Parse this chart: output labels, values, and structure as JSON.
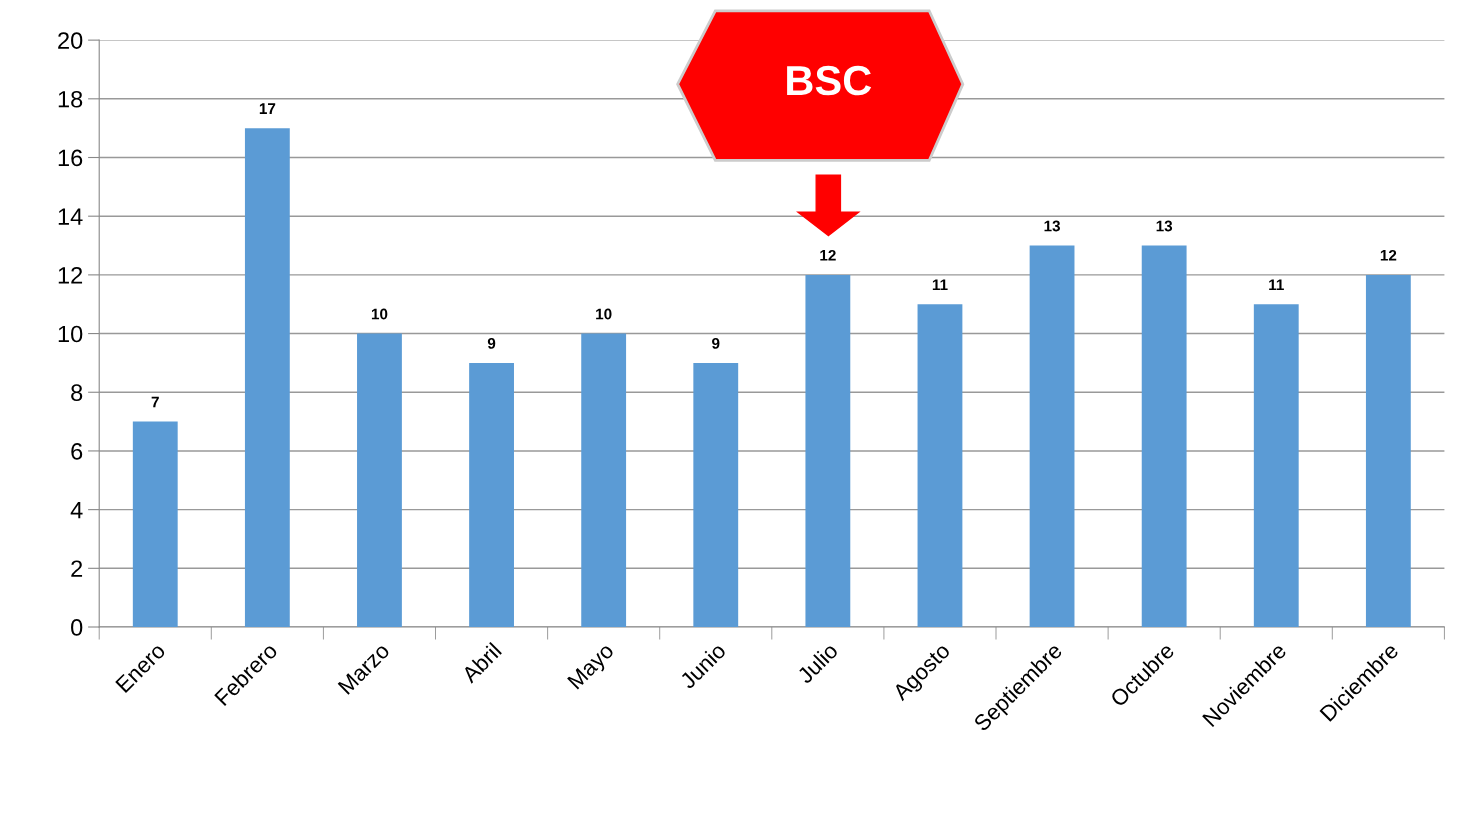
{
  "chart_data": {
    "type": "bar",
    "categories": [
      "Enero",
      "Febrero",
      "Marzo",
      "Abril",
      "Mayo",
      "Junio",
      "Julio",
      "Agosto",
      "Septiembre",
      "Octubre",
      "Noviembre",
      "Diciembre"
    ],
    "values": [
      7,
      17,
      10,
      9,
      10,
      9,
      12,
      11,
      13,
      13,
      11,
      12
    ],
    "color": "#5b9bd5",
    "ylim": [
      0,
      20
    ],
    "yticks": [
      0,
      2,
      4,
      6,
      8,
      10,
      12,
      14,
      16,
      18,
      20
    ],
    "grid": "y",
    "data_labels": true,
    "annotations": [
      "BSC"
    ]
  }
}
